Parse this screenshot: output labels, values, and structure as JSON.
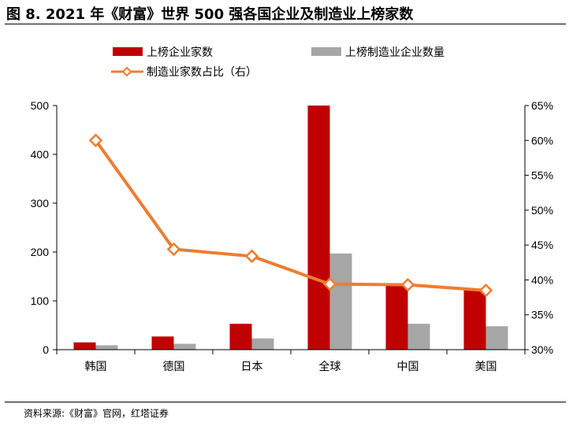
{
  "figure": {
    "title": "图 8. 2021 年《财富》世界 500 强各国企业及制造业上榜家数",
    "source": "资料来源:《财富》官网，红塔证券"
  },
  "chart_data": {
    "type": "bar",
    "categories": [
      "韩国",
      "德国",
      "日本",
      "全球",
      "中国",
      "美国"
    ],
    "series": [
      {
        "name": "上榜企业家数",
        "type": "bar",
        "axis": "left",
        "color": "#c00000",
        "values": [
          15,
          27,
          53,
          500,
          135,
          122
        ]
      },
      {
        "name": "上榜制造业企业数量",
        "type": "bar",
        "axis": "left",
        "color": "#a6a6a6",
        "values": [
          9,
          12,
          23,
          197,
          53,
          48
        ]
      },
      {
        "name": "制造业家数占比（右）",
        "type": "line",
        "axis": "right",
        "color": "#ed7d31",
        "marker": "diamond",
        "values": [
          0.6,
          0.444,
          0.434,
          0.394,
          0.393,
          0.385
        ]
      }
    ],
    "y_left": {
      "lim": [
        0,
        500
      ],
      "ticks": [
        0,
        100,
        200,
        300,
        400,
        500
      ],
      "tick_labels": [
        "0",
        "100",
        "200",
        "300",
        "400",
        "500"
      ]
    },
    "y_right": {
      "lim": [
        0.3,
        0.65
      ],
      "ticks": [
        0.3,
        0.35,
        0.4,
        0.45,
        0.5,
        0.55,
        0.6,
        0.65
      ],
      "tick_labels": [
        "30%",
        "35%",
        "40%",
        "45%",
        "50%",
        "55%",
        "60%",
        "65%"
      ]
    },
    "legend_position": "top",
    "grid": false,
    "xlabel": "",
    "ylabel": ""
  }
}
